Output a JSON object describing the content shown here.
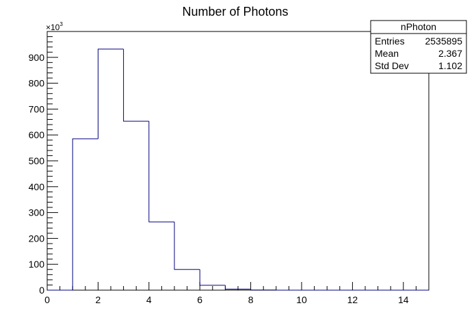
{
  "chart_data": {
    "type": "bar",
    "title": "Number of Photons",
    "xlabel": "",
    "ylabel": "",
    "y_multiplier": "×10",
    "y_multiplier_exp": "3",
    "xlim": [
      0,
      15
    ],
    "ylim": [
      0,
      1000
    ],
    "x_ticks": [
      0,
      2,
      4,
      6,
      8,
      10,
      12,
      14
    ],
    "y_ticks": [
      0,
      100,
      200,
      300,
      400,
      500,
      600,
      700,
      800,
      900
    ],
    "bin_edges": [
      0,
      1,
      2,
      3,
      4,
      5,
      6,
      7,
      8,
      9,
      10,
      11,
      12,
      13,
      14,
      15
    ],
    "values": [
      0,
      585,
      932,
      653,
      264,
      80,
      19,
      4,
      0.6,
      0.1,
      0,
      0,
      0,
      0,
      0
    ],
    "line_color": "#000080",
    "grid": false,
    "legend": "none"
  },
  "stats_box": {
    "title": "nPhoton",
    "rows": [
      {
        "label": "Entries",
        "value": "2535895"
      },
      {
        "label": "Mean",
        "value": "2.367"
      },
      {
        "label": "Std Dev",
        "value": "1.102"
      }
    ],
    "placement": "top-right"
  }
}
